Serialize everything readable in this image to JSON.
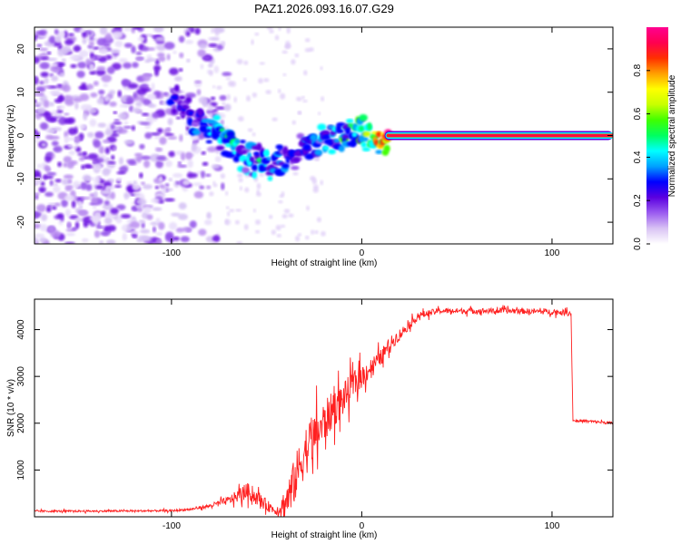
{
  "title": "PAZ1.2026.093.16.07.G29",
  "chart_data": [
    {
      "type": "heatmap",
      "xlabel": "Height of straight line (km)",
      "ylabel": "Frequency (Hz)",
      "xlim": [
        -172,
        132
      ],
      "ylim": [
        -25,
        25
      ],
      "xticks": [
        -100,
        0,
        100
      ],
      "yticks": [
        -20,
        -10,
        0,
        10,
        20
      ],
      "colorbar": {
        "label": "Normalized spectral amplitude",
        "range": [
          0,
          1
        ],
        "ticks": [
          "0.0",
          "0.2",
          "0.4",
          "0.6",
          "0.8"
        ],
        "colors": [
          "#ffffff",
          "#d9c3f4",
          "#9b5cf0",
          "#5b00e0",
          "#0000ff",
          "#00a0ff",
          "#00ffff",
          "#00ff60",
          "#40ff00",
          "#c8ff00",
          "#ffff00",
          "#ffa000",
          "#ff3000",
          "#ff0050",
          "#ff0090"
        ]
      },
      "ridge": {
        "description": "dominant frequency vs height",
        "x": [
          -100,
          -90,
          -80,
          -70,
          -60,
          -50,
          -45,
          -40,
          -30,
          -20,
          -10,
          0,
          10,
          20,
          50,
          100,
          132
        ],
        "y": [
          8,
          5,
          2,
          -2,
          -5,
          -7,
          -7,
          -6,
          -2,
          -1,
          0,
          1,
          0,
          0,
          0,
          0,
          0
        ],
        "amplitude": [
          0.25,
          0.35,
          0.4,
          0.45,
          0.4,
          0.45,
          0.35,
          0.3,
          0.3,
          0.4,
          0.5,
          0.5,
          0.8,
          0.95,
          0.95,
          0.95,
          0.9
        ]
      },
      "noise_region_x": [
        -172,
        -80
      ]
    },
    {
      "type": "line",
      "xlabel": "Height of straight line (km)",
      "ylabel": "SNR (10 * v/v)",
      "xlim": [
        -172,
        132
      ],
      "ylim": [
        0,
        4650
      ],
      "xticks": [
        -100,
        0,
        100
      ],
      "yticks": [
        1000,
        2000,
        3000,
        4000
      ],
      "series": [
        {
          "name": "SNR",
          "color": "#ff2020",
          "x": [
            -172,
            -150,
            -120,
            -100,
            -90,
            -80,
            -70,
            -60,
            -50,
            -45,
            -40,
            -35,
            -30,
            -25,
            -20,
            -15,
            -10,
            -5,
            0,
            5,
            10,
            15,
            20,
            25,
            30,
            40,
            50,
            60,
            80,
            100,
            105,
            110,
            111,
            115,
            120,
            132
          ],
          "y": [
            120,
            120,
            125,
            130,
            160,
            230,
            350,
            550,
            250,
            120,
            300,
            800,
            1400,
            1700,
            2000,
            2300,
            2500,
            2800,
            3000,
            3200,
            3400,
            3700,
            3900,
            4100,
            4300,
            4400,
            4400,
            4400,
            4400,
            4380,
            4370,
            4350,
            2050,
            2050,
            2040,
            2000
          ],
          "noise_amplitude": [
            40,
            40,
            40,
            40,
            50,
            80,
            180,
            350,
            250,
            150,
            700,
            1000,
            1100,
            1000,
            900,
            800,
            700,
            600,
            500,
            400,
            350,
            300,
            250,
            180,
            150,
            120,
            120,
            120,
            120,
            120,
            120,
            120,
            60,
            60,
            60,
            60
          ]
        }
      ]
    }
  ]
}
